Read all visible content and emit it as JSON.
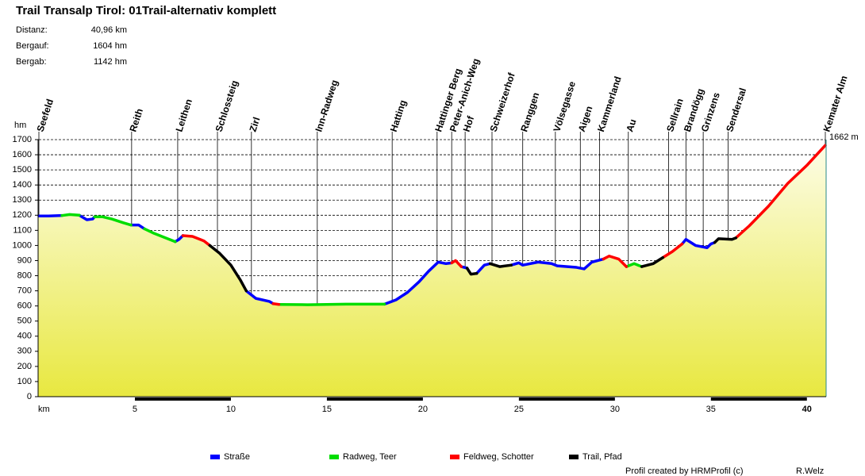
{
  "chart_data": {
    "type": "line",
    "title": "Trail Transalp Tirol: 01Trail-alternativ komplett",
    "info": [
      {
        "label": "Distanz:",
        "value": "40,96 km"
      },
      {
        "label": "Bergauf:",
        "value": "1604 hm"
      },
      {
        "label": "Bergab:",
        "value": "1142 hm"
      }
    ],
    "x_label": "km",
    "y_label": "hm",
    "xlim": [
      0,
      40.96
    ],
    "xticks": [
      5,
      10,
      15,
      20,
      25,
      30,
      35,
      40
    ],
    "ylim": [
      0,
      1700
    ],
    "yticks": [
      0,
      100,
      200,
      300,
      400,
      500,
      600,
      700,
      800,
      900,
      1000,
      1100,
      1200,
      1300,
      1400,
      1500,
      1600,
      1700
    ],
    "grid": true,
    "end_label": "1662 m",
    "waypoints": [
      {
        "name": "Seefeld",
        "km": 0
      },
      {
        "name": "Reith",
        "km": 4.83
      },
      {
        "name": "Leithen",
        "km": 7.23
      },
      {
        "name": "Schlossteig",
        "km": 9.3
      },
      {
        "name": "Zirl",
        "km": 11.07
      },
      {
        "name": "Inn-Radweg",
        "km": 14.5
      },
      {
        "name": "Hatting",
        "km": 18.4
      },
      {
        "name": "Hattinger Berg",
        "km": 20.74
      },
      {
        "name": "Peter-Anich-Weg",
        "km": 21.5
      },
      {
        "name": "Hof",
        "km": 22.2
      },
      {
        "name": "Schweizerhof",
        "km": 23.6
      },
      {
        "name": "Ranggen",
        "km": 25.2
      },
      {
        "name": "Völsegasse",
        "km": 26.9
      },
      {
        "name": "Aigen",
        "km": 28.2
      },
      {
        "name": "Kammerland",
        "km": 29.2
      },
      {
        "name": "Au",
        "km": 30.7
      },
      {
        "name": "Sellrain",
        "km": 32.8
      },
      {
        "name": "Brandögg",
        "km": 33.7
      },
      {
        "name": "Grinzens",
        "km": 34.6
      },
      {
        "name": "Sendersal",
        "km": 35.9
      },
      {
        "name": "Kemater Alm",
        "km": 40.96
      }
    ],
    "series": [
      {
        "name": "Straße",
        "color": "#0000ff",
        "x": [
          0,
          0.5,
          1.2,
          null,
          2.1,
          2.5,
          2.8,
          2.9,
          null,
          4.8,
          5.2,
          5.5,
          null,
          7.1,
          7.3,
          7.5,
          null,
          10.8,
          11.3,
          12.0,
          12.2,
          null,
          18.0,
          18.6,
          19.2,
          19.8,
          20.3,
          20.8,
          21.2,
          21.5,
          null,
          22.0,
          22.3,
          null,
          22.8,
          23.2,
          23.5,
          null,
          24.6,
          25.0,
          25.2,
          26.0,
          26.7,
          27.0,
          28.0,
          28.4,
          28.8,
          29.4,
          null,
          33.5,
          33.7,
          34.2,
          34.8,
          35.0,
          35.2
        ],
        "values": [
          1195,
          1195,
          1198,
          null,
          1200,
          1170,
          1175,
          1190,
          null,
          1135,
          1135,
          1110,
          null,
          1025,
          1040,
          1065,
          null,
          700,
          650,
          630,
          615,
          null,
          612,
          640,
          690,
          760,
          830,
          890,
          880,
          885,
          null,
          860,
          850,
          null,
          815,
          870,
          880,
          null,
          870,
          885,
          870,
          890,
          880,
          865,
          855,
          845,
          890,
          910,
          null,
          1010,
          1040,
          1000,
          985,
          1010,
          1020
        ]
      },
      {
        "name": "Radweg, Teer",
        "color": "#00dd00",
        "x": [
          1.2,
          1.6,
          2.1,
          null,
          2.9,
          3.3,
          3.8,
          4.4,
          4.8,
          null,
          5.5,
          6.0,
          6.6,
          7.1,
          null,
          12.5,
          14,
          16,
          18.0,
          null,
          30.6,
          31.0,
          31.4
        ],
        "values": [
          1198,
          1205,
          1200,
          null,
          1190,
          1190,
          1175,
          1150,
          1135,
          null,
          1110,
          1080,
          1050,
          1025,
          null,
          610,
          608,
          612,
          612,
          null,
          860,
          880,
          860
        ]
      },
      {
        "name": "Feldweg, Schotter",
        "color": "#ff0000",
        "x": [
          7.5,
          8.0,
          8.6,
          8.9,
          null,
          12.2,
          12.5,
          null,
          21.5,
          21.7,
          22.0,
          null,
          29.4,
          29.7,
          30.2,
          30.6,
          null,
          32.5,
          33.0,
          33.5,
          null,
          36.3,
          37,
          38,
          39,
          40,
          40.96
        ],
        "values": [
          1065,
          1060,
          1030,
          1000,
          null,
          615,
          610,
          null,
          885,
          900,
          860,
          null,
          910,
          930,
          910,
          860,
          null,
          920,
          960,
          1010,
          null,
          1050,
          1130,
          1260,
          1410,
          1530,
          1662
        ]
      },
      {
        "name": "Trail, Pfad",
        "color": "#000000",
        "x": [
          8.9,
          9.4,
          10.0,
          10.5,
          10.8,
          null,
          22.3,
          22.5,
          22.8,
          null,
          23.5,
          24.0,
          24.6,
          null,
          31.4,
          32.0,
          32.5,
          null,
          35.2,
          35.4,
          36.1,
          36.3
        ],
        "values": [
          1000,
          950,
          870,
          770,
          700,
          null,
          850,
          810,
          815,
          null,
          880,
          860,
          870,
          null,
          860,
          880,
          920,
          null,
          1020,
          1045,
          1040,
          1050
        ]
      }
    ]
  },
  "footer": {
    "credit": "Profil created by HRMProfil (c)",
    "author": "R.Welz"
  }
}
